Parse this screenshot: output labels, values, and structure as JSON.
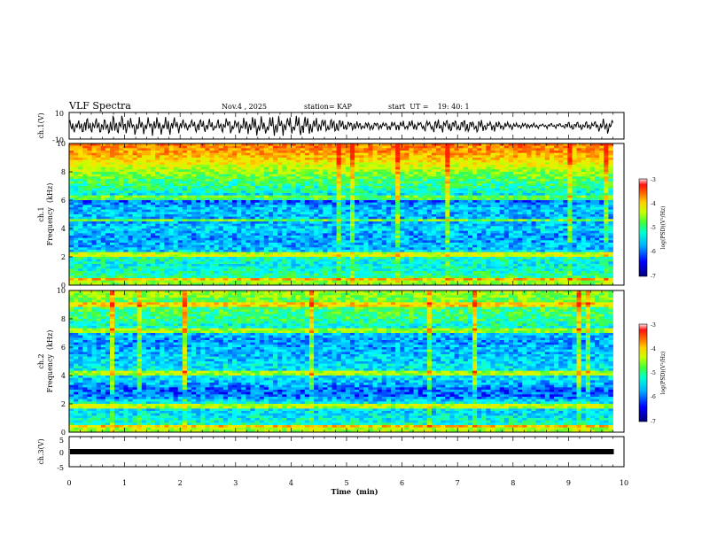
{
  "header": {
    "title": "VLF Spectra",
    "date": "Nov.4 , 2025",
    "station": "station= KAP",
    "start": "start  UT =    19: 40: 1"
  },
  "colors": {
    "scale": [
      "#000080",
      "#0000ff",
      "#00a0ff",
      "#00ffff",
      "#40ff40",
      "#c8ff00",
      "#ffe000",
      "#ff8000",
      "#ff2000",
      "#ffffff"
    ],
    "trace": "#000000",
    "axis": "#000000"
  },
  "chart_data": [
    {
      "id": "ch1-waveform",
      "type": "line",
      "ylabel": "ch.1(V)",
      "ylim": [
        -10,
        10
      ],
      "yticks": [
        "10",
        "-10"
      ],
      "xlim": [
        0,
        10
      ]
    },
    {
      "id": "ch1-spectrogram",
      "type": "heatmap",
      "ylabel_line1": "ch.1",
      "ylabel_line2": "Frequency  (kHz)",
      "ylim": [
        0,
        10
      ],
      "yticks": [
        "0",
        "2",
        "4",
        "6",
        "8",
        "10"
      ],
      "xlim": [
        0,
        9.8
      ],
      "colorbar": {
        "label": "log(PSD)(V²/Hz)",
        "range": [
          -7,
          -3
        ],
        "ticks": [
          "-3",
          "-4",
          "-5",
          "-6",
          "-7"
        ]
      },
      "band_profile": [
        {
          "f": 0.0,
          "level": 0.55
        },
        {
          "f": 0.3,
          "level": 0.62
        },
        {
          "f": 0.6,
          "level": 0.45
        },
        {
          "f": 1.0,
          "level": 0.42
        },
        {
          "f": 1.5,
          "level": 0.36
        },
        {
          "f": 2.0,
          "level": 0.44
        },
        {
          "f": 2.5,
          "level": 0.3
        },
        {
          "f": 3.0,
          "level": 0.28
        },
        {
          "f": 3.5,
          "level": 0.26
        },
        {
          "f": 4.0,
          "level": 0.33
        },
        {
          "f": 4.5,
          "level": 0.27
        },
        {
          "f": 5.0,
          "level": 0.3
        },
        {
          "f": 5.5,
          "level": 0.29
        },
        {
          "f": 6.0,
          "level": 0.2
        },
        {
          "f": 6.5,
          "level": 0.38
        },
        {
          "f": 7.0,
          "level": 0.45
        },
        {
          "f": 7.5,
          "level": 0.5
        },
        {
          "f": 8.0,
          "level": 0.58
        },
        {
          "f": 8.5,
          "level": 0.68
        },
        {
          "f": 9.0,
          "level": 0.78
        },
        {
          "f": 9.5,
          "level": 0.85
        },
        {
          "f": 10.0,
          "level": 0.88
        }
      ],
      "bright_lines_khz": [
        0.4,
        2.2,
        4.6,
        6.2
      ]
    },
    {
      "id": "ch2-spectrogram",
      "type": "heatmap",
      "ylabel_line1": "ch.2",
      "ylabel_line2": "Frequency  (kHz)",
      "ylim": [
        0,
        10
      ],
      "yticks": [
        "0",
        "2",
        "4",
        "6",
        "8",
        "10"
      ],
      "xlim": [
        0,
        9.8
      ],
      "colorbar": {
        "label": "log(PSD)(V²/Hz)",
        "range": [
          -7,
          -3
        ],
        "ticks": [
          "-3",
          "-4",
          "-5",
          "-6",
          "-7"
        ]
      },
      "band_profile": [
        {
          "f": 0.0,
          "level": 0.58
        },
        {
          "f": 0.3,
          "level": 0.62
        },
        {
          "f": 0.6,
          "level": 0.4
        },
        {
          "f": 1.0,
          "level": 0.36
        },
        {
          "f": 1.5,
          "level": 0.33
        },
        {
          "f": 2.0,
          "level": 0.4
        },
        {
          "f": 2.5,
          "level": 0.22
        },
        {
          "f": 3.0,
          "level": 0.2
        },
        {
          "f": 3.5,
          "level": 0.3
        },
        {
          "f": 4.0,
          "level": 0.34
        },
        {
          "f": 4.5,
          "level": 0.36
        },
        {
          "f": 5.0,
          "level": 0.32
        },
        {
          "f": 5.5,
          "level": 0.3
        },
        {
          "f": 6.0,
          "level": 0.28
        },
        {
          "f": 6.5,
          "level": 0.26
        },
        {
          "f": 7.0,
          "level": 0.3
        },
        {
          "f": 7.5,
          "level": 0.4
        },
        {
          "f": 8.0,
          "level": 0.46
        },
        {
          "f": 8.5,
          "level": 0.48
        },
        {
          "f": 9.0,
          "level": 0.5
        },
        {
          "f": 9.5,
          "level": 0.55
        },
        {
          "f": 10.0,
          "level": 0.6
        }
      ],
      "bright_lines_khz": [
        0.4,
        1.8,
        4.2,
        7.2,
        9.0
      ]
    },
    {
      "id": "ch3-waveform",
      "type": "line",
      "ylabel": "ch.3(V)",
      "ylim": [
        -5,
        5
      ],
      "yticks": [
        "5",
        "0",
        "-5"
      ],
      "xlim": [
        0,
        10
      ],
      "level": 0.0
    }
  ],
  "xaxis": {
    "label": "Time  (min)",
    "ticks": [
      "0",
      "1",
      "2",
      "3",
      "4",
      "5",
      "6",
      "7",
      "8",
      "9",
      "10"
    ]
  }
}
